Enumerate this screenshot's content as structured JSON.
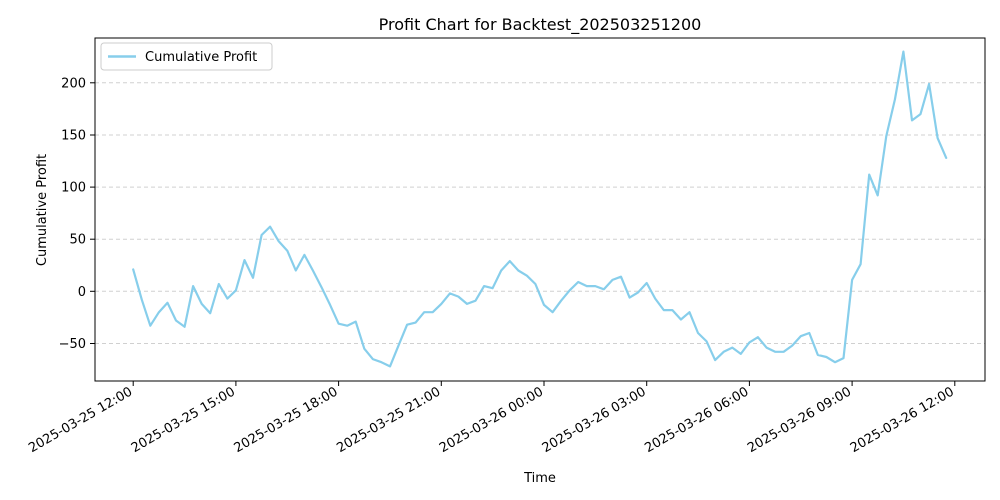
{
  "chart_data": {
    "type": "line",
    "title": "Profit Chart for Backtest_202503251200",
    "xlabel": "Time",
    "ylabel": "Cumulative Profit",
    "grid": "y-dashed",
    "legend_position": "upper-left",
    "xlim": [
      "2025-03-25 10:53",
      "2025-03-26 12:53"
    ],
    "ylim": [
      -86,
      243
    ],
    "x_ticks": [
      "2025-03-25 12:00",
      "2025-03-25 15:00",
      "2025-03-25 18:00",
      "2025-03-25 21:00",
      "2025-03-26 00:00",
      "2025-03-26 03:00",
      "2025-03-26 06:00",
      "2025-03-26 09:00",
      "2025-03-26 12:00"
    ],
    "y_ticks": [
      -50,
      0,
      50,
      100,
      150,
      200
    ],
    "series": [
      {
        "name": "Cumulative Profit",
        "color": "#87ceeb",
        "x": [
          "2025-03-25 12:00",
          "2025-03-25 12:15",
          "2025-03-25 12:30",
          "2025-03-25 12:45",
          "2025-03-25 13:00",
          "2025-03-25 13:15",
          "2025-03-25 13:30",
          "2025-03-25 13:45",
          "2025-03-25 14:00",
          "2025-03-25 14:15",
          "2025-03-25 14:30",
          "2025-03-25 14:45",
          "2025-03-25 15:00",
          "2025-03-25 15:15",
          "2025-03-25 15:30",
          "2025-03-25 15:45",
          "2025-03-25 16:00",
          "2025-03-25 16:15",
          "2025-03-25 16:30",
          "2025-03-25 16:45",
          "2025-03-25 17:00",
          "2025-03-25 17:15",
          "2025-03-25 17:30",
          "2025-03-25 17:45",
          "2025-03-25 18:00",
          "2025-03-25 18:15",
          "2025-03-25 18:30",
          "2025-03-25 18:45",
          "2025-03-25 19:00",
          "2025-03-25 19:15",
          "2025-03-25 19:30",
          "2025-03-25 19:45",
          "2025-03-25 20:00",
          "2025-03-25 20:15",
          "2025-03-25 20:30",
          "2025-03-25 20:45",
          "2025-03-25 21:00",
          "2025-03-25 21:15",
          "2025-03-25 21:30",
          "2025-03-25 21:45",
          "2025-03-25 22:00",
          "2025-03-25 22:15",
          "2025-03-25 22:30",
          "2025-03-25 22:45",
          "2025-03-25 23:00",
          "2025-03-25 23:15",
          "2025-03-25 23:30",
          "2025-03-25 23:45",
          "2025-03-26 00:00",
          "2025-03-26 00:15",
          "2025-03-26 00:30",
          "2025-03-26 00:45",
          "2025-03-26 01:00",
          "2025-03-26 01:15",
          "2025-03-26 01:30",
          "2025-03-26 01:45",
          "2025-03-26 02:00",
          "2025-03-26 02:15",
          "2025-03-26 02:30",
          "2025-03-26 02:45",
          "2025-03-26 03:00",
          "2025-03-26 03:15",
          "2025-03-26 03:30",
          "2025-03-26 03:45",
          "2025-03-26 04:00",
          "2025-03-26 04:15",
          "2025-03-26 04:30",
          "2025-03-26 04:45",
          "2025-03-26 05:00",
          "2025-03-26 05:15",
          "2025-03-26 05:30",
          "2025-03-26 05:45",
          "2025-03-26 06:00",
          "2025-03-26 06:15",
          "2025-03-26 06:30",
          "2025-03-26 06:45",
          "2025-03-26 07:00",
          "2025-03-26 07:15",
          "2025-03-26 07:30",
          "2025-03-26 07:45",
          "2025-03-26 08:00",
          "2025-03-26 08:15",
          "2025-03-26 08:30",
          "2025-03-26 08:45",
          "2025-03-26 09:00",
          "2025-03-26 09:15",
          "2025-03-26 09:30",
          "2025-03-26 09:45",
          "2025-03-26 10:00",
          "2025-03-26 10:15",
          "2025-03-26 10:30",
          "2025-03-26 10:45",
          "2025-03-26 11:00",
          "2025-03-26 11:15",
          "2025-03-26 11:30",
          "2025-03-26 11:45"
        ],
        "values": [
          21,
          -8,
          -33,
          -20,
          -11,
          -28,
          -34,
          5,
          -12,
          -21,
          7,
          -7,
          1,
          30,
          13,
          54,
          62,
          48,
          39,
          20,
          35,
          20,
          4,
          -13,
          -31,
          -33,
          -29,
          -55,
          -65,
          -68,
          -72,
          -52,
          -32,
          -30,
          -20,
          -20,
          -12,
          -2,
          -5,
          -12,
          -9,
          5,
          3,
          20,
          29,
          20,
          15,
          7,
          -13,
          -20,
          -9,
          1,
          9,
          5,
          5,
          2,
          11,
          14,
          -6,
          -1,
          8,
          -7,
          -18,
          -18,
          -27,
          -20,
          -40,
          -48,
          -66,
          -58,
          -54,
          -60,
          -49,
          -44,
          -54,
          -58,
          -58,
          -52,
          -43,
          -40,
          -61,
          -63,
          -68,
          -64,
          11,
          26,
          112,
          92,
          149,
          184,
          230,
          164,
          170,
          199,
          147,
          128
        ]
      }
    ]
  }
}
